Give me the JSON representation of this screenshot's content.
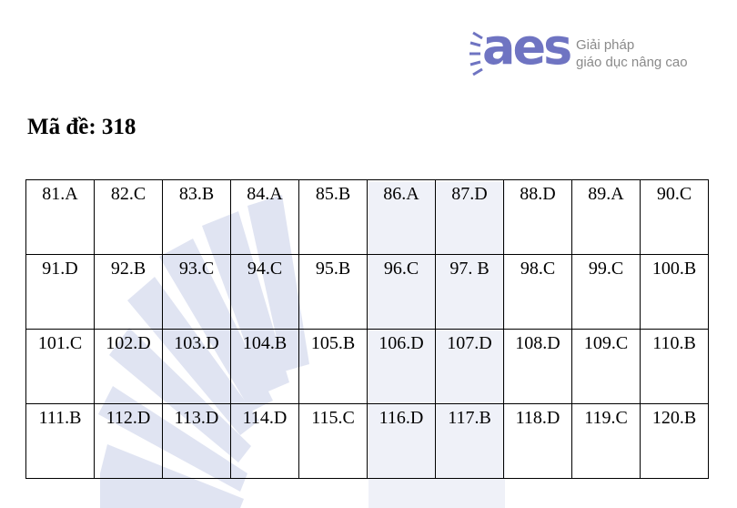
{
  "header": {
    "logo": "aes",
    "tagline": [
      "Giải pháp",
      "giáo dục nâng cao"
    ]
  },
  "title": "Mã đề: 318",
  "table": {
    "rows": [
      [
        "81.A",
        "82.C",
        "83.B",
        "84.A",
        "85.B",
        "86.A",
        "87.D",
        "88.D",
        "89.A",
        "90.C"
      ],
      [
        "91.D",
        "92.B",
        "93.C",
        "94.C",
        "95.B",
        "96.C",
        "97. B",
        "98.C",
        "99.C",
        "100.B"
      ],
      [
        "101.C",
        "102.D",
        "103.D",
        "104.B",
        "105.B",
        "106.D",
        "107.D",
        "108.D",
        "109.C",
        "110.B"
      ],
      [
        "111.B",
        "112.D",
        "113.D",
        "114.D",
        "115.C",
        "116.D",
        "117.B",
        "118.D",
        "119.C",
        "120.B"
      ]
    ]
  }
}
